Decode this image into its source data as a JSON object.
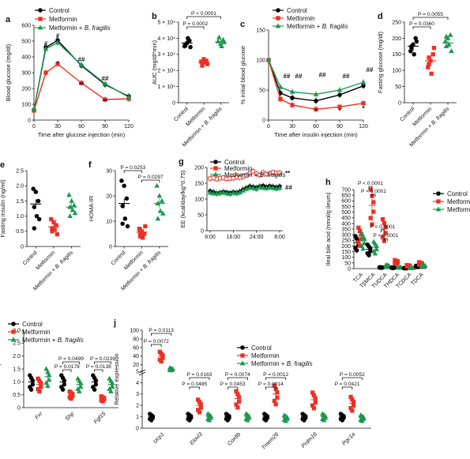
{
  "figure": {
    "colors": {
      "control": "#000000",
      "metformin": "#ed3024",
      "bfragilis": "#1a9850"
    },
    "legend_labels": [
      "Control",
      "Metformin",
      "Metformin + B. fragilis"
    ]
  },
  "chart_data": [
    {
      "panel": "a",
      "type": "line",
      "xlabel": "Time after glucose injection (min)",
      "ylabel": "Blood glucose (mg/dl)",
      "x": [
        0,
        15,
        30,
        60,
        90,
        120
      ],
      "xlim": [
        0,
        120
      ],
      "xticks": [
        "0",
        "30",
        "60",
        "90",
        "120"
      ],
      "ylim": [
        0,
        600
      ],
      "yticks": [
        "0",
        "100",
        "200",
        "300",
        "400",
        "500",
        "600"
      ],
      "series": [
        {
          "name": "Control",
          "values": [
            65,
            460,
            505,
            345,
            225,
            150
          ]
        },
        {
          "name": "Metformin",
          "values": [
            60,
            300,
            355,
            235,
            130,
            135
          ]
        },
        {
          "name": "Metformin + B. fragilis",
          "values": [
            65,
            450,
            490,
            350,
            230,
            145
          ]
        }
      ],
      "annotations": [
        "#",
        "#",
        "*",
        "##",
        "**",
        "##",
        "**"
      ]
    },
    {
      "panel": "b",
      "type": "scatter",
      "ylabel": "AUC (mg/dl*min)",
      "ylim": [
        0,
        50000
      ],
      "yticks": [
        "0",
        "1 × 10⁴",
        "2 × 10⁴",
        "3 × 10⁴",
        "4 × 10⁴",
        "5 × 10⁴"
      ],
      "categories": [
        "Control",
        "Metformin",
        "Metformin + B. fragilis"
      ],
      "points": [
        [
          35000,
          37000,
          38500,
          36000,
          40000,
          34500
        ],
        [
          25500,
          27000,
          26000,
          23000,
          25000,
          24000
        ],
        [
          38000,
          36500,
          39000,
          40500,
          35000,
          37500
        ]
      ],
      "means": [
        37000,
        25000,
        37700
      ],
      "pvalues": [
        "P < 0.0001",
        "P = 0.0002"
      ]
    },
    {
      "panel": "c",
      "type": "line",
      "xlabel": "Time after insulin injection (min)",
      "ylabel": "% initial blood glucose",
      "x": [
        0,
        15,
        30,
        60,
        90,
        120
      ],
      "xlim": [
        0,
        120
      ],
      "xticks": [
        "0",
        "30",
        "60",
        "90",
        "120"
      ],
      "ylim": [
        0,
        150
      ],
      "yticks": [
        "0",
        "50",
        "100",
        "150"
      ],
      "series": [
        {
          "name": "Control",
          "values": [
            100,
            45,
            37,
            32,
            42,
            57
          ]
        },
        {
          "name": "Metformin",
          "values": [
            100,
            35,
            25,
            18,
            22,
            28
          ]
        },
        {
          "name": "Metformin + B. fragilis",
          "values": [
            100,
            55,
            47,
            43,
            50,
            63
          ]
        }
      ],
      "annotations": [
        "##",
        "##",
        "##",
        "##",
        "##",
        "*",
        "*",
        "*"
      ]
    },
    {
      "panel": "d",
      "type": "scatter",
      "ylabel": "Fasting glucose (mg/dl)",
      "ylim": [
        0,
        250
      ],
      "yticks": [
        "0",
        "50",
        "100",
        "150",
        "200",
        "250"
      ],
      "categories": [
        "Control",
        "Metformin",
        "Metformin + B. fragilis"
      ],
      "points": [
        [
          160,
          180,
          200,
          170,
          150,
          190,
          175
        ],
        [
          110,
          130,
          150,
          140,
          90,
          170,
          120
        ],
        [
          190,
          200,
          210,
          175,
          180,
          160,
          205
        ]
      ],
      "means": [
        175,
        130,
        185
      ],
      "pvalues": [
        "P = 0.0055",
        "P = 0.0360"
      ]
    },
    {
      "panel": "e",
      "type": "scatter",
      "ylabel": "Fasting insulin (ng/ml)",
      "ylim": [
        0,
        2.5
      ],
      "yticks": [
        "0",
        "0.5",
        "1.0",
        "1.5",
        "2.0",
        "2.5"
      ],
      "categories": [
        "Control",
        "Metformin",
        "Metformin + B. fragilis"
      ],
      "points": [
        [
          1.9,
          1.8,
          1.5,
          1.3,
          1.0,
          0.9,
          0.6
        ],
        [
          0.9,
          0.8,
          0.7,
          0.6,
          0.55,
          0.4,
          0.5
        ],
        [
          1.7,
          1.5,
          1.35,
          1.3,
          1.2,
          1.1,
          1.0
        ]
      ],
      "means": [
        1.4,
        0.65,
        1.3
      ]
    },
    {
      "panel": "f",
      "type": "scatter",
      "ylabel": "HOMA-IR",
      "ylim": [
        0,
        30
      ],
      "yticks": [
        "0",
        "10",
        "20",
        "30"
      ],
      "categories": [
        "Control",
        "Metformin",
        "Metformin + B. fragilis"
      ],
      "points": [
        [
          26,
          24,
          19,
          16,
          11,
          8,
          9
        ],
        [
          7,
          6,
          5,
          4,
          3.5,
          8,
          5.5
        ],
        [
          24,
          20,
          18,
          17,
          14,
          13,
          11
        ]
      ],
      "means": [
        17,
        5.7,
        17
      ],
      "pvalues": [
        "P = 0.0253",
        "P = 0.0297"
      ]
    },
    {
      "panel": "g",
      "type": "line",
      "ylabel": "EE (kcal/day/kg^0.75)",
      "xticks": [
        "8:00",
        "16:00",
        "24:00",
        "8:00"
      ],
      "ylim": [
        0,
        200
      ],
      "yticks": [
        "0",
        "50",
        "100",
        "150",
        "200"
      ],
      "series": [
        {
          "name": "Control",
          "values": [
            125,
            122,
            118,
            120,
            123,
            121,
            119,
            122,
            120,
            124,
            130,
            135,
            140,
            138,
            136,
            140,
            142,
            138,
            141,
            139,
            137,
            140
          ]
        },
        {
          "name": "Metformin",
          "values": [
            165,
            167,
            163,
            166,
            168,
            164,
            165,
            166,
            170,
            168,
            172,
            175,
            182,
            188,
            180,
            176,
            184,
            179,
            181,
            185,
            182,
            183
          ]
        },
        {
          "name": "Metformin + B. fragilis",
          "values": [
            120,
            118,
            117,
            119,
            121,
            118,
            116,
            120,
            118,
            121,
            127,
            132,
            136,
            135,
            132,
            138,
            136,
            134,
            137,
            135,
            133,
            135
          ]
        }
      ],
      "annotations": [
        "**",
        "##"
      ]
    },
    {
      "panel": "h",
      "type": "scatter",
      "ylabel": "Ileal bile acid (nmol/g ileum)",
      "ylim": [
        0,
        700
      ],
      "yticks": [
        "0",
        "50",
        "100",
        "150",
        "200",
        "250",
        "300",
        "350",
        "400",
        "450",
        "500",
        "550",
        "600",
        "650",
        "700"
      ],
      "categories": [
        "TCA",
        "TβMCA",
        "TUDCA",
        "THDCA",
        "TCDCA",
        "TDCA"
      ],
      "groups": [
        {
          "name": "Control",
          "means": [
            230,
            170,
            10,
            8,
            4,
            20
          ]
        },
        {
          "name": "Metformin",
          "means": [
            290,
            560,
            350,
            60,
            25,
            45
          ]
        },
        {
          "name": "Metformin + B. fragilis",
          "means": [
            250,
            190,
            25,
            10,
            5,
            25
          ]
        }
      ],
      "pvalues": [
        "P < 0.0001",
        "P < 0.0001",
        "P < 0.0001",
        "P < 0.0001"
      ]
    },
    {
      "panel": "i",
      "type": "scatter",
      "ylabel": "Relative expression",
      "ylim": [
        0,
        3
      ],
      "yticks": [
        "0",
        "0.5",
        "1.0",
        "1.5",
        "2.0",
        "2.5",
        "3.0"
      ],
      "categories": [
        "Fxr",
        "Shp",
        "Fgf15"
      ],
      "groups": [
        {
          "name": "Control",
          "means": [
            1.0,
            1.0,
            1.0
          ]
        },
        {
          "name": "Metformin",
          "means": [
            0.9,
            0.5,
            0.35
          ]
        },
        {
          "name": "Metformin + B. fragilis",
          "means": [
            1.2,
            0.9,
            0.9
          ]
        }
      ],
      "pvalues": [
        "P = 0.0499",
        "P = 0.0178",
        "P = 0.0239",
        "P = 0.0138"
      ]
    },
    {
      "panel": "j",
      "type": "scatter",
      "ylabel": "Relative expression",
      "yticks": [
        "0",
        "1",
        "2",
        "3",
        "4",
        "5",
        "20",
        "40",
        "60",
        "80",
        "100"
      ],
      "categories": [
        "Ucp1",
        "Elovl3",
        "Cox8b",
        "Tmem26",
        "Prdm16",
        "Pgc1a"
      ],
      "groups": [
        {
          "name": "Control",
          "means": [
            1.0,
            1.0,
            1.0,
            1.0,
            1.0,
            1.0
          ]
        },
        {
          "name": "Metformin",
          "means": [
            40,
            2.0,
            2.6,
            3.0,
            2.5,
            2.2
          ]
        },
        {
          "name": "Metformin + B. fragilis",
          "means": [
            10,
            1.0,
            1.0,
            0.9,
            1.0,
            0.9
          ]
        }
      ],
      "pvalues": [
        "P = 0.0113",
        "P = 0.0072",
        "P = 0.0163",
        "P = 0.0485",
        "P = 0.0074",
        "P = 0.0453",
        "P = 0.0012",
        "P = 0.0014",
        "P = 0.0052",
        "P = 0.0421"
      ]
    }
  ]
}
